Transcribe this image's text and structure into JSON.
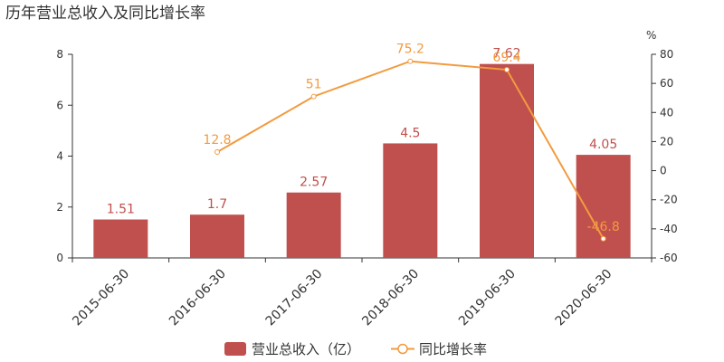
{
  "title": "历年营业总收入及同比增长率",
  "colors": {
    "bar": "#c0504d",
    "line": "#f29b3f",
    "axis": "#333333"
  },
  "chart_data": {
    "type": "bar",
    "title": "历年营业总收入及同比增长率",
    "categories": [
      "2015-06-30",
      "2016-06-30",
      "2017-06-30",
      "2018-06-30",
      "2019-06-30",
      "2020-06-30"
    ],
    "series": [
      {
        "name": "营业总收入（亿）",
        "type": "bar",
        "axis": "left",
        "values": [
          1.51,
          1.7,
          2.57,
          4.5,
          7.62,
          4.05
        ],
        "labels": [
          "1.51",
          "1.7",
          "2.57",
          "4.5",
          "7.62",
          "4.05"
        ]
      },
      {
        "name": "同比增长率",
        "type": "line",
        "axis": "right",
        "values": [
          null,
          12.8,
          51,
          75.2,
          69.4,
          -46.8
        ],
        "labels": [
          "",
          "12.8",
          "51",
          "75.2",
          "69.4",
          "-46.8"
        ]
      }
    ],
    "y_left": {
      "min": 0,
      "max": 8,
      "ticks": [
        "0",
        "2",
        "4",
        "6",
        "8"
      ]
    },
    "y_right": {
      "min": -60,
      "max": 80,
      "unit": "%",
      "ticks": [
        "-60",
        "-40",
        "-20",
        "0",
        "20",
        "40",
        "60",
        "80"
      ]
    },
    "grid": false,
    "legend_position": "bottom"
  }
}
